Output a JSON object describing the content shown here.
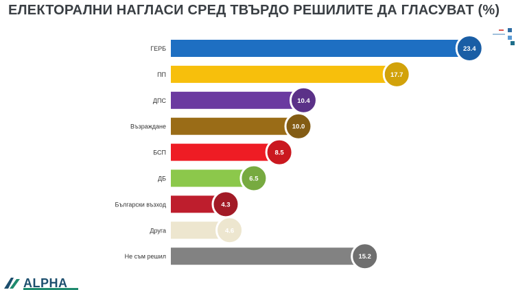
{
  "chart_data": {
    "type": "bar",
    "orientation": "horizontal",
    "title": "ЕЛЕКТОРАЛНИ НАГЛАСИ СРЕД ТВЪРДО РЕШИЛИТЕ ДА ГЛАСУВАТ (%)",
    "categories": [
      "ГЕРБ",
      "ПП",
      "ДПС",
      "Възраждане",
      "БСП",
      "ДБ",
      "Български възход",
      "Друга",
      "Не съм решил"
    ],
    "values": [
      23.4,
      17.7,
      10.4,
      10.0,
      8.5,
      6.5,
      4.3,
      4.6,
      15.2
    ],
    "value_labels": [
      "23.4",
      "17.7",
      "10.4",
      "10.0",
      "8.5",
      "6.5",
      "4.3",
      "4.6",
      "15.2"
    ],
    "colors": [
      "#1e6fc2",
      "#f7bf0c",
      "#6b3aa0",
      "#9a6c17",
      "#ee1c24",
      "#8cc84b",
      "#be1e2d",
      "#ede6cf",
      "#828282"
    ],
    "xlim": [
      0,
      25
    ],
    "grid": false,
    "legend": "none"
  },
  "logo": {
    "text": "ALPHA"
  },
  "colors": {
    "title": "#3a3f44",
    "logo": "#1d4f6e"
  }
}
